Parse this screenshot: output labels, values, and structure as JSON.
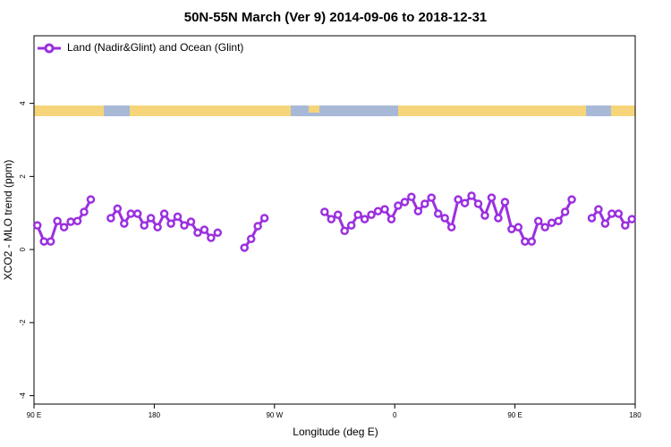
{
  "chart_data": {
    "type": "line",
    "title": "50N-55N March (Ver 9)   2014-09-06 to 2018-12-31",
    "xlabel": "Longitude (deg E)",
    "ylabel": "XCO2 - MLO trend (ppm)",
    "xlim": [
      90,
      540
    ],
    "ylim": [
      -4.23,
      5.85
    ],
    "xticks": [
      {
        "value": 90,
        "label": "90 E"
      },
      180,
      {
        "value": 270,
        "label": "90 W"
      },
      {
        "value": 360,
        "label": "0"
      },
      {
        "value": 450,
        "label": "90 E"
      },
      {
        "value": 540,
        "label": "180"
      }
    ],
    "yticks": [
      -4,
      -2,
      0,
      2,
      4
    ],
    "legend": "top-left",
    "x": [
      92.5,
      97.5,
      102.5,
      107.5,
      112.5,
      117.5,
      122.5,
      127.5,
      132.5,
      137.5,
      147.5,
      152.5,
      157.5,
      162.5,
      167.5,
      172.5,
      177.5,
      182.5,
      187.5,
      192.5,
      197.5,
      202.5,
      207.5,
      212.5,
      217.5,
      222.5,
      227.5,
      232.5,
      247.5,
      252.5,
      257.5,
      262.5,
      267.5,
      307.5,
      312.5,
      317.5,
      322.5,
      327.5,
      332.5,
      337.5,
      342.5,
      347.5,
      352.5,
      357.5,
      362.5,
      367.5,
      372.5,
      377.5,
      382.5,
      387.5,
      392.5,
      397.5,
      402.5,
      407.5,
      412.5,
      417.5,
      422.5,
      427.5,
      432.5,
      437.5,
      442.5,
      447.5,
      452.5,
      457.5,
      462.5,
      467.5,
      472.5,
      477.5,
      482.5,
      487.5,
      492.5,
      497.5,
      507.5,
      512.5,
      517.5,
      522.5,
      527.5,
      532.5,
      537.5
    ],
    "series": [
      {
        "name": "Land (Nadir&Glint) and Ocean (Glint)",
        "color": "#9b30e0",
        "values": [
          0.66,
          0.22,
          0.22,
          0.78,
          0.61,
          0.76,
          0.78,
          1.03,
          1.37,
          null,
          0.86,
          1.12,
          0.71,
          0.98,
          0.98,
          0.66,
          0.86,
          0.61,
          0.98,
          0.71,
          0.9,
          0.66,
          0.76,
          0.46,
          0.54,
          0.32,
          0.46,
          null,
          0.05,
          0.29,
          0.64,
          0.86,
          null,
          1.03,
          0.83,
          0.95,
          0.51,
          0.66,
          0.95,
          0.83,
          0.95,
          1.05,
          1.1,
          0.83,
          1.2,
          1.3,
          1.44,
          1.05,
          1.25,
          1.42,
          0.98,
          0.86,
          0.61,
          1.37,
          1.27,
          1.47,
          1.25,
          0.93,
          1.42,
          0.86,
          1.3,
          0.56,
          0.61,
          0.22,
          0.22,
          0.78,
          0.61,
          0.73,
          0.78,
          1.03,
          1.37,
          null,
          0.86,
          1.1,
          0.71,
          0.98,
          0.98,
          0.66,
          0.83
        ]
      }
    ]
  }
}
